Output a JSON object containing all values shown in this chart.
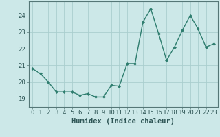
{
  "x": [
    0,
    1,
    2,
    3,
    4,
    5,
    6,
    7,
    8,
    9,
    10,
    11,
    12,
    13,
    14,
    15,
    16,
    17,
    18,
    19,
    20,
    21,
    22,
    23
  ],
  "y": [
    20.8,
    20.5,
    20.0,
    19.4,
    19.4,
    19.4,
    19.2,
    19.3,
    19.1,
    19.1,
    19.8,
    19.75,
    21.1,
    21.1,
    23.6,
    24.4,
    22.9,
    21.3,
    22.1,
    23.1,
    24.0,
    23.2,
    22.1,
    22.3
  ],
  "line_color": "#2e7d6e",
  "marker": "D",
  "markersize": 2.0,
  "linewidth": 1.0,
  "bg_color": "#cce8e8",
  "grid_color": "#aacece",
  "xlabel": "Humidex (Indice chaleur)",
  "ylim": [
    18.5,
    24.85
  ],
  "xlim": [
    -0.5,
    23.5
  ],
  "yticks": [
    19,
    20,
    21,
    22,
    23,
    24
  ],
  "xticks": [
    0,
    1,
    2,
    3,
    4,
    5,
    6,
    7,
    8,
    9,
    10,
    11,
    12,
    13,
    14,
    15,
    16,
    17,
    18,
    19,
    20,
    21,
    22,
    23
  ],
  "xlabel_fontsize": 7.5,
  "tick_fontsize": 6.5
}
